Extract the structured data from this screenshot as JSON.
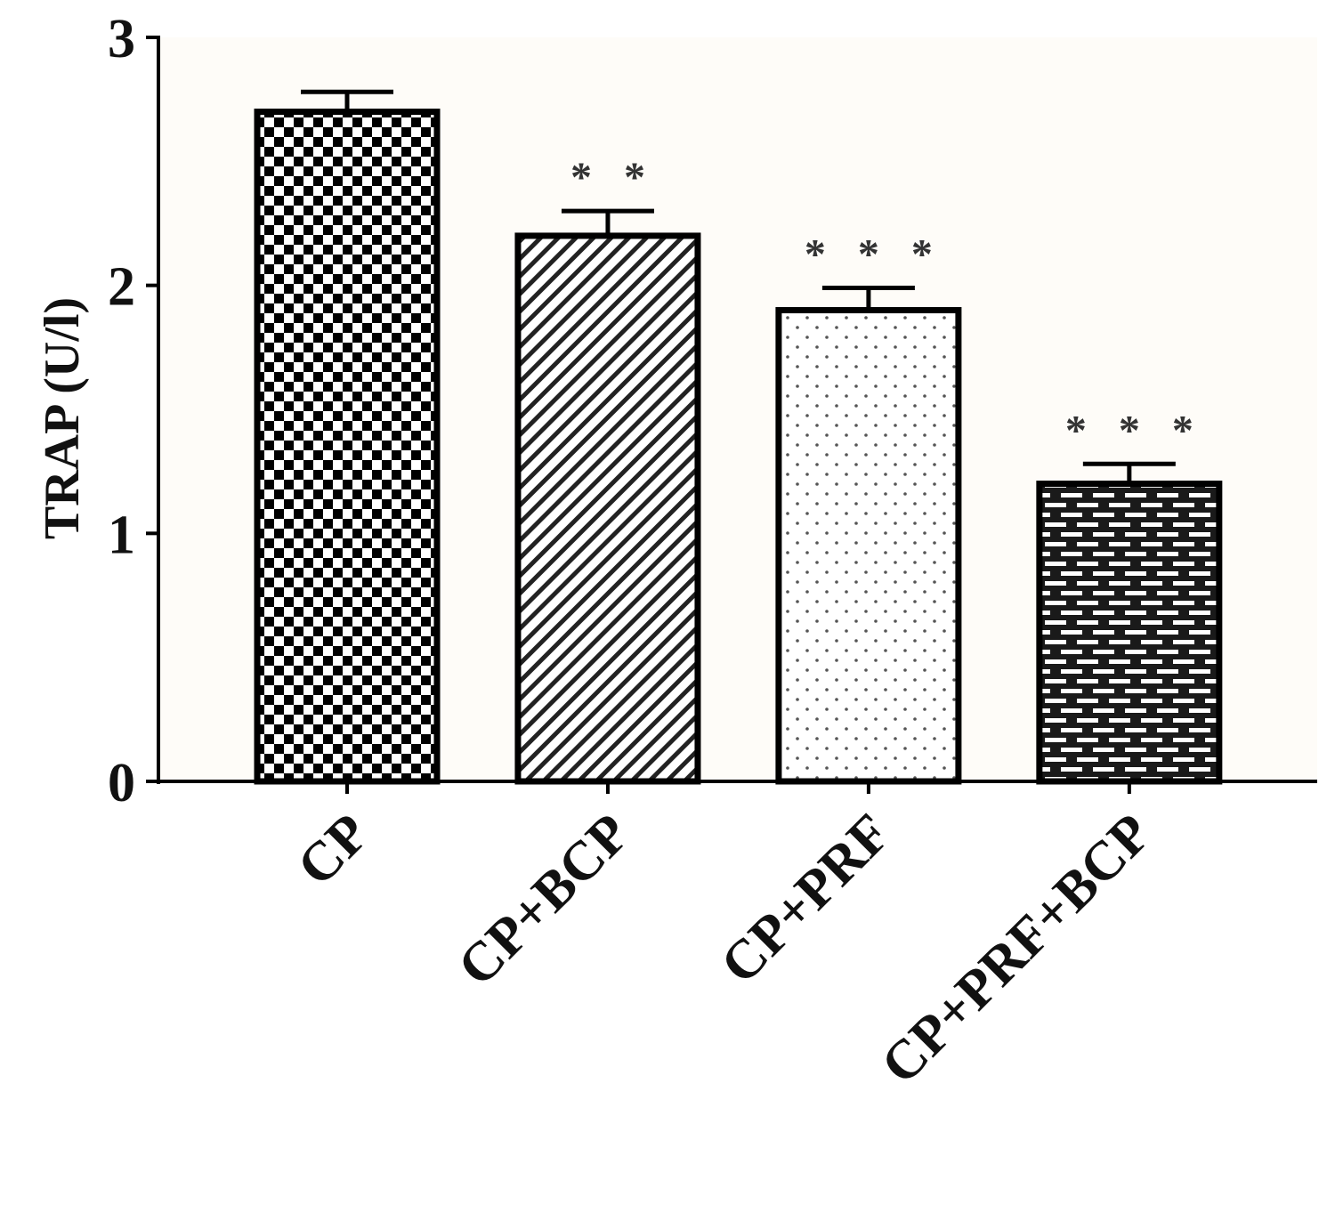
{
  "chart_data": {
    "type": "bar",
    "title": "",
    "xlabel": "",
    "ylabel": "TRAP (U/l)",
    "ylim": [
      0,
      3
    ],
    "yticks": [
      "0",
      "1",
      "2",
      "3"
    ],
    "categories": [
      "CP",
      "CP+BCP",
      "CP+PRF",
      "CP+PRF+BCP"
    ],
    "values": [
      2.7,
      2.2,
      1.9,
      1.2
    ],
    "errors": [
      0.08,
      0.1,
      0.09,
      0.08
    ],
    "significance": [
      "",
      "* *",
      "* * *",
      "* * *"
    ],
    "patterns": [
      "checkerboard",
      "diagonal-hatch",
      "dots",
      "bricks"
    ],
    "grid": false,
    "legend": "none",
    "bar_color": "#000000"
  }
}
